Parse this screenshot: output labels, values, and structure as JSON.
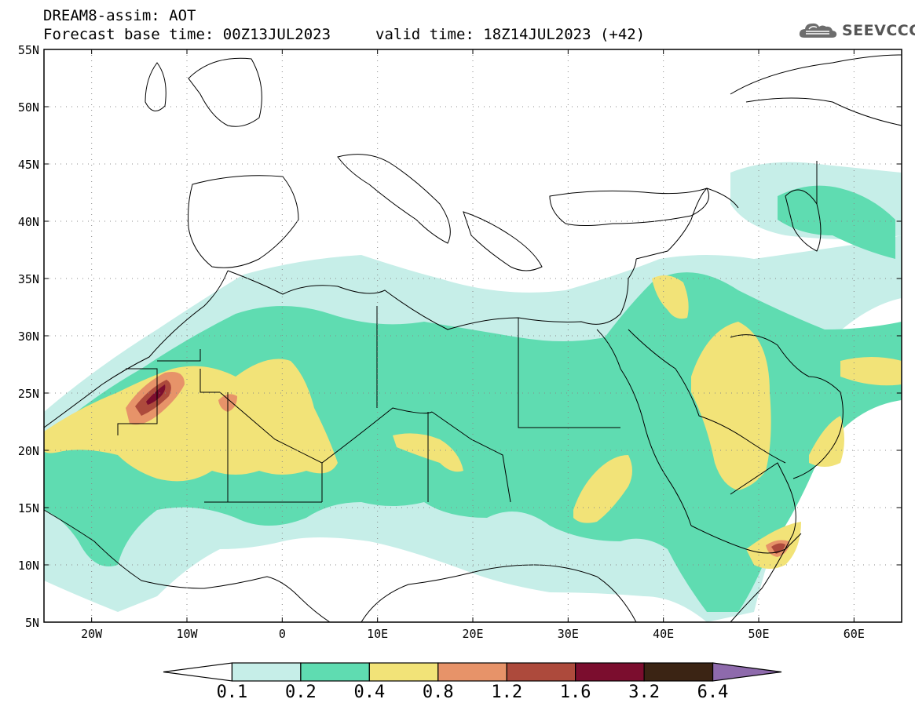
{
  "header": {
    "title": "DREAM8-assim: AOT",
    "base_time": "Forecast base time: 00Z13JUL2023",
    "valid_time": "valid time: 18Z14JUL2023 (+42)"
  },
  "logo": {
    "text": "SEEVCCC",
    "icon": "cloud-icon"
  },
  "map": {
    "lat_labels": [
      "55N",
      "50N",
      "45N",
      "40N",
      "35N",
      "30N",
      "25N",
      "20N",
      "15N",
      "10N",
      "5N"
    ],
    "lon_labels": [
      "20W",
      "10W",
      "0",
      "10E",
      "20E",
      "30E",
      "40E",
      "50E",
      "60E"
    ],
    "lon_range": [
      -25,
      65
    ],
    "lat_range": [
      5,
      55
    ],
    "grid": true
  },
  "colorbar": {
    "labels": [
      "0.1",
      "0.2",
      "0.4",
      "0.8",
      "1.2",
      "1.6",
      "3.2",
      "6.4"
    ],
    "colors": [
      "#ffffff",
      "#c6eee8",
      "#5fdcb1",
      "#f2e378",
      "#e79369",
      "#ad4a3c",
      "#7b0d2e",
      "#3b2414",
      "#8e6aac"
    ]
  }
}
